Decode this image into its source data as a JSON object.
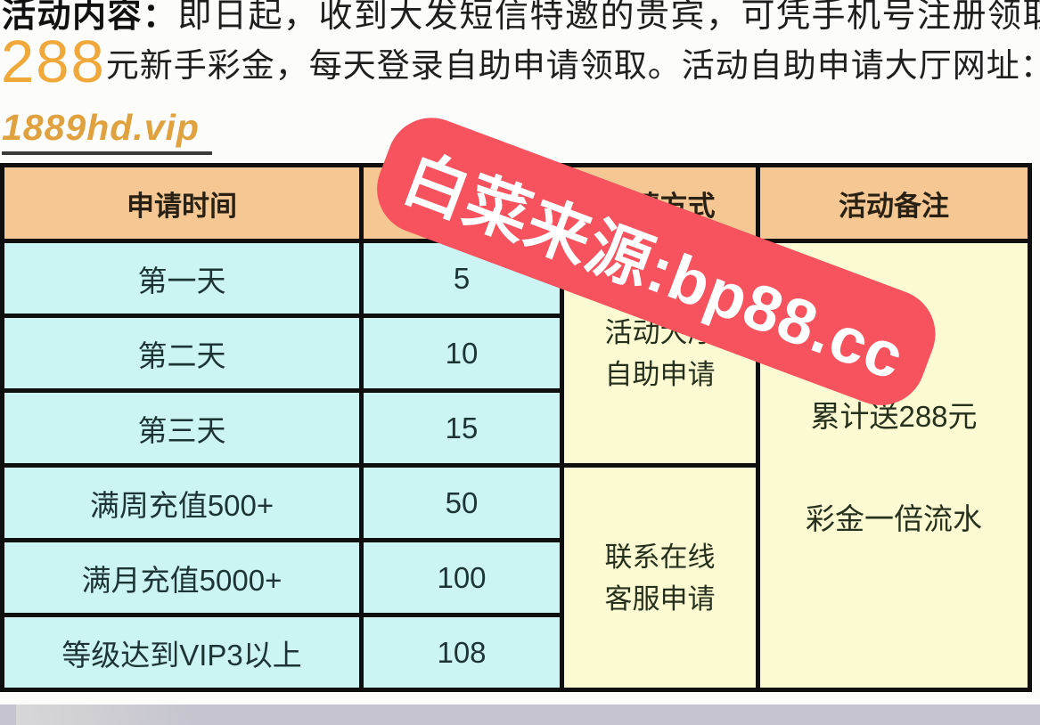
{
  "intro": {
    "line1_bold": "活动内容：",
    "line1_rest": "即日起，收到大发短信特邀的贵宾，可凭手机号注册领取",
    "line2_amount": "288",
    "line2_rest": "元新手彩金，每天登录自助申请领取。活动自助申请大厅网址：",
    "link_text": "1889hd.vip"
  },
  "watermark": {
    "text": "白菜来源:bp88.cc",
    "color": "#f7535f"
  },
  "table": {
    "col_headers": [
      "申请时间",
      "",
      "申请方式",
      "活动备注"
    ],
    "rows": [
      {
        "time": "第一天",
        "amount": "5"
      },
      {
        "time": "第二天",
        "amount": "10"
      },
      {
        "time": "第三天",
        "amount": "15"
      },
      {
        "time": "满周充值500+",
        "amount": "50"
      },
      {
        "time": "满月充值5000+",
        "amount": "100"
      },
      {
        "time": "等级达到VIP3以上",
        "amount": "108"
      }
    ],
    "method_self": {
      "line1": "活动大厅",
      "line2": "自助申请"
    },
    "method_cs": {
      "line1": "联系在线",
      "line2": "客服申请"
    },
    "notes": {
      "line1": "累计送288元",
      "line2": "彩金一倍流水"
    }
  },
  "colors": {
    "header_bg": "#f5c793",
    "cyan_cell_bg": "#cbf4f2",
    "yellow_cell_bg": "#fcfad2",
    "banner_red": "#f7535f",
    "banner_text": "#ffffff",
    "link_orange": "#e0a23e",
    "amount_orange": "#f0a83a",
    "table_border": "#0f0f0f",
    "footer_gray": "#c6c5cf"
  }
}
